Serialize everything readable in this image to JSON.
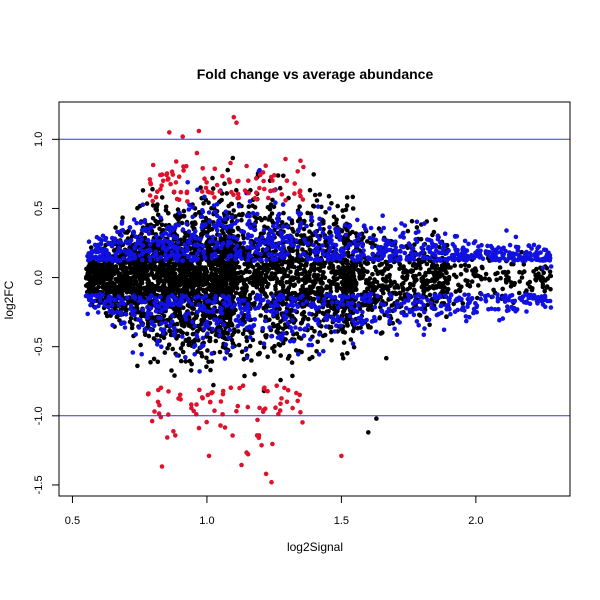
{
  "chart_data": {
    "type": "scatter",
    "title": "Fold change vs average abundance",
    "xlabel": "log2Signal",
    "ylabel": "log2FC",
    "xlim": [
      0.45,
      2.35
    ],
    "ylim": [
      -1.58,
      1.27
    ],
    "x_ticks": [
      "0.5",
      "1.0",
      "1.5",
      "2.0"
    ],
    "y_ticks": [
      "-1.5",
      "-1.0",
      "-0.5",
      "0.0",
      "0.5",
      "1.0"
    ],
    "reference_lines": [
      1.0,
      -1.0
    ],
    "reference_line_color": "#3333dd",
    "legend": "none",
    "grid": false,
    "series": [
      {
        "color": "#000000",
        "count": 4000,
        "note_colors": "black points: not significant"
      },
      {
        "color": "#1010e0",
        "count": 1500
      },
      {
        "color": "#e0102a",
        "count": 170
      }
    ],
    "notable_points": [
      {
        "x": 1.1,
        "y": 1.16
      },
      {
        "x": 1.11,
        "y": 1.12
      },
      {
        "x": 0.97,
        "y": 1.06
      },
      {
        "x": 0.91,
        "y": 1.02
      },
      {
        "x": 0.86,
        "y": 1.05
      },
      {
        "x": 1.24,
        "y": -1.48
      },
      {
        "x": 1.22,
        "y": -1.42
      },
      {
        "x": 1.5,
        "y": -1.29
      },
      {
        "x": 1.63,
        "y": -1.02
      },
      {
        "x": 1.6,
        "y": -1.12
      },
      {
        "x": 2.28,
        "y": 0.08
      },
      {
        "x": 2.25,
        "y": 0.07
      }
    ]
  }
}
